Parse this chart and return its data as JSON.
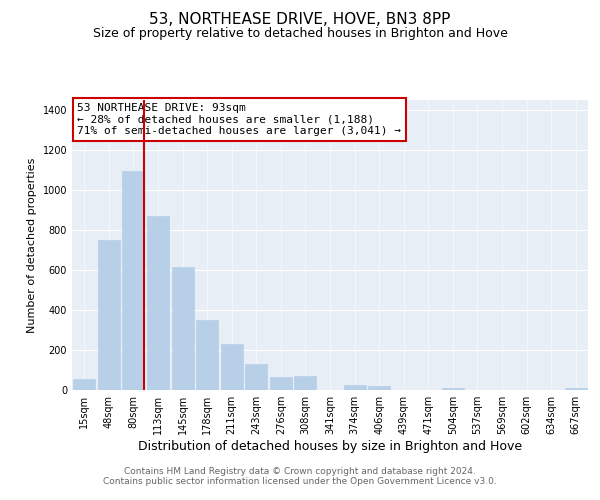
{
  "title": "53, NORTHEASE DRIVE, HOVE, BN3 8PP",
  "subtitle": "Size of property relative to detached houses in Brighton and Hove",
  "xlabel": "Distribution of detached houses by size in Brighton and Hove",
  "ylabel": "Number of detached properties",
  "categories": [
    "15sqm",
    "48sqm",
    "80sqm",
    "113sqm",
    "145sqm",
    "178sqm",
    "211sqm",
    "243sqm",
    "276sqm",
    "308sqm",
    "341sqm",
    "374sqm",
    "406sqm",
    "439sqm",
    "471sqm",
    "504sqm",
    "537sqm",
    "569sqm",
    "602sqm",
    "634sqm",
    "667sqm"
  ],
  "values": [
    55,
    750,
    1095,
    870,
    615,
    348,
    228,
    132,
    65,
    72,
    0,
    25,
    18,
    0,
    0,
    12,
    0,
    0,
    0,
    0,
    12
  ],
  "bar_color": "#b8cfe8",
  "bar_edge_color": "#b8cfe8",
  "vline_color": "#cc0000",
  "vline_x_index": 2,
  "ylim": [
    0,
    1450
  ],
  "yticks": [
    0,
    200,
    400,
    600,
    800,
    1000,
    1200,
    1400
  ],
  "annotation_line1": "53 NORTHEASE DRIVE: 93sqm",
  "annotation_line2": "← 28% of detached houses are smaller (1,188)",
  "annotation_line3": "71% of semi-detached houses are larger (3,041) →",
  "annotation_box_color": "#ffffff",
  "annotation_box_edge": "#cc0000",
  "footer1": "Contains HM Land Registry data © Crown copyright and database right 2024.",
  "footer2": "Contains public sector information licensed under the Open Government Licence v3.0.",
  "bg_color": "#ffffff",
  "plot_bg_color": "#e8eef5",
  "title_fontsize": 11,
  "subtitle_fontsize": 9,
  "xlabel_fontsize": 9,
  "ylabel_fontsize": 8,
  "tick_fontsize": 7,
  "annotation_fontsize": 8,
  "footer_fontsize": 6.5
}
